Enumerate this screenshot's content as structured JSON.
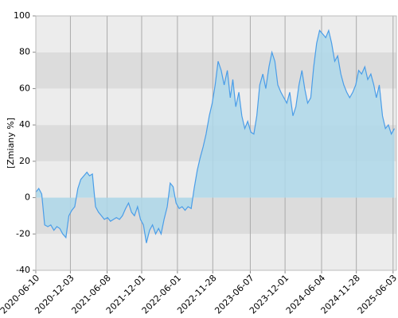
{
  "chart_data": {
    "type": "area",
    "y_label": "[Zmiany %]",
    "ylim": [
      -40,
      100
    ],
    "yticks": [
      -40,
      -20,
      0,
      20,
      40,
      60,
      80,
      100
    ],
    "xlim": [
      "2020-06-10",
      "2025-06-20"
    ],
    "xticks": [
      "2020-06-10",
      "2020-12-03",
      "2021-06-08",
      "2021-12-01",
      "2022-06-01",
      "2022-11-28",
      "2023-06-07",
      "2023-12-01",
      "2024-06-04",
      "2024-11-28",
      "2025-06-03"
    ],
    "band_colors": [
      "#ececec",
      "#dcdcdc"
    ],
    "grid": true,
    "line_color": "#4a9de8",
    "fill_color": "#aed8ea",
    "x": [
      "2020-06-10",
      "2020-06-25",
      "2020-07-10",
      "2020-07-25",
      "2020-08-10",
      "2020-08-25",
      "2020-09-10",
      "2020-09-25",
      "2020-10-10",
      "2020-10-25",
      "2020-11-10",
      "2020-11-25",
      "2020-12-10",
      "2020-12-25",
      "2021-01-10",
      "2021-01-25",
      "2021-02-10",
      "2021-02-25",
      "2021-03-10",
      "2021-03-25",
      "2021-04-10",
      "2021-04-25",
      "2021-05-10",
      "2021-05-25",
      "2021-06-10",
      "2021-06-25",
      "2021-07-10",
      "2021-07-25",
      "2021-08-10",
      "2021-08-25",
      "2021-09-10",
      "2021-09-25",
      "2021-10-10",
      "2021-10-25",
      "2021-11-10",
      "2021-11-25",
      "2021-12-10",
      "2021-12-25",
      "2022-01-10",
      "2022-01-25",
      "2022-02-10",
      "2022-02-25",
      "2022-03-10",
      "2022-03-25",
      "2022-04-10",
      "2022-04-25",
      "2022-05-10",
      "2022-05-25",
      "2022-06-10",
      "2022-06-25",
      "2022-07-10",
      "2022-07-25",
      "2022-08-10",
      "2022-08-25",
      "2022-09-10",
      "2022-09-25",
      "2022-10-10",
      "2022-10-25",
      "2022-11-10",
      "2022-11-25",
      "2022-12-10",
      "2022-12-25",
      "2023-01-10",
      "2023-01-25",
      "2023-02-10",
      "2023-02-25",
      "2023-03-10",
      "2023-03-25",
      "2023-04-10",
      "2023-04-25",
      "2023-05-10",
      "2023-05-25",
      "2023-06-10",
      "2023-06-25",
      "2023-07-10",
      "2023-07-25",
      "2023-08-10",
      "2023-08-25",
      "2023-09-10",
      "2023-09-25",
      "2023-10-10",
      "2023-10-25",
      "2023-11-10",
      "2023-11-25",
      "2023-12-10",
      "2023-12-25",
      "2024-01-10",
      "2024-01-25",
      "2024-02-10",
      "2024-02-25",
      "2024-03-10",
      "2024-03-25",
      "2024-04-10",
      "2024-04-25",
      "2024-05-10",
      "2024-05-25",
      "2024-06-10",
      "2024-06-25",
      "2024-07-10",
      "2024-07-25",
      "2024-08-10",
      "2024-08-25",
      "2024-09-10",
      "2024-09-25",
      "2024-10-10",
      "2024-10-25",
      "2024-11-10",
      "2024-11-25",
      "2024-12-10",
      "2024-12-25",
      "2025-01-10",
      "2025-01-25",
      "2025-02-10",
      "2025-02-25",
      "2025-03-10",
      "2025-03-25",
      "2025-04-10",
      "2025-04-25",
      "2025-05-10",
      "2025-05-25",
      "2025-06-10"
    ],
    "values": [
      3,
      5,
      2,
      -15,
      -16,
      -15,
      -18,
      -16,
      -17,
      -20,
      -22,
      -10,
      -7,
      -5,
      5,
      10,
      12,
      14,
      12,
      13,
      -5,
      -8,
      -10,
      -12,
      -11,
      -13,
      -12,
      -11,
      -12,
      -10,
      -6,
      -3,
      -8,
      -10,
      -5,
      -12,
      -15,
      -25,
      -18,
      -15,
      -20,
      -17,
      -20,
      -12,
      -5,
      8,
      6,
      -3,
      -6,
      -5,
      -7,
      -5,
      -6,
      5,
      15,
      22,
      28,
      35,
      45,
      52,
      62,
      75,
      70,
      62,
      70,
      55,
      65,
      50,
      58,
      45,
      38,
      42,
      36,
      35,
      45,
      62,
      68,
      60,
      72,
      80,
      75,
      62,
      58,
      55,
      52,
      58,
      45,
      50,
      62,
      70,
      60,
      52,
      55,
      72,
      85,
      92,
      90,
      88,
      92,
      85,
      75,
      78,
      68,
      62,
      58,
      55,
      58,
      62,
      70,
      68,
      72,
      65,
      68,
      62,
      55,
      62,
      45,
      38,
      40,
      35,
      38
    ]
  }
}
